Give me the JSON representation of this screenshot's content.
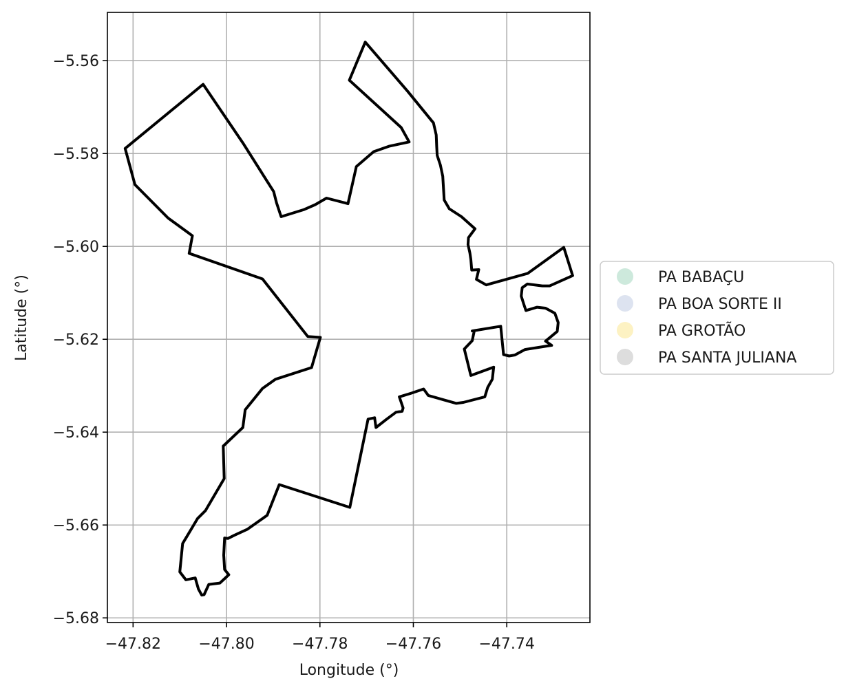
{
  "chart_data": {
    "type": "map",
    "title": "",
    "xlabel": "Longitude (°)",
    "ylabel": "Latitude (°)",
    "xlim": [
      -47.8255,
      -47.7222
    ],
    "ylim": [
      -5.681,
      -5.5496
    ],
    "grid": true,
    "x_ticks": [
      -47.82,
      -47.8,
      -47.78,
      -47.76,
      -47.74
    ],
    "x_tick_labels": [
      "−47.82",
      "−47.80",
      "−47.78",
      "−47.76",
      "−47.74"
    ],
    "y_ticks": [
      -5.56,
      -5.58,
      -5.6,
      -5.62,
      -5.64,
      -5.66,
      -5.68
    ],
    "y_tick_labels": [
      "−5.56",
      "−5.58",
      "−5.60",
      "−5.62",
      "−5.64",
      "−5.66",
      "−5.68"
    ],
    "legend": {
      "placement": "center-right outside axes",
      "entries": [
        {
          "label": "PA BABAÇU",
          "color": "#cde9dc"
        },
        {
          "label": "PA BOA SORTE II",
          "color": "#dde3f0"
        },
        {
          "label": "PA GROTÃO",
          "color": "#fdf2c3"
        },
        {
          "label": "PA SANTA JULIANA",
          "color": "#dddddd"
        }
      ]
    },
    "boundary": {
      "stroke_color": "#000000",
      "coordinates": [
        [
          -47.7703,
          -5.556
        ],
        [
          -47.7737,
          -5.5642
        ],
        [
          -47.7626,
          -5.5744
        ],
        [
          -47.7609,
          -5.5775
        ],
        [
          -47.7651,
          -5.5784
        ],
        [
          -47.7685,
          -5.5796
        ],
        [
          -47.7722,
          -5.5828
        ],
        [
          -47.774,
          -5.5908
        ],
        [
          -47.7786,
          -5.5896
        ],
        [
          -47.781,
          -5.591
        ],
        [
          -47.7835,
          -5.5921
        ],
        [
          -47.7883,
          -5.5936
        ],
        [
          -47.7893,
          -5.5906
        ],
        [
          -47.7899,
          -5.5882
        ],
        [
          -47.7965,
          -5.5777
        ],
        [
          -47.805,
          -5.5651
        ],
        [
          -47.8217,
          -5.5789
        ],
        [
          -47.8196,
          -5.5867
        ],
        [
          -47.8125,
          -5.5939
        ],
        [
          -47.8073,
          -5.5977
        ],
        [
          -47.808,
          -5.6015
        ],
        [
          -47.7923,
          -5.607
        ],
        [
          -47.7826,
          -5.6194
        ],
        [
          -47.7799,
          -5.6196
        ],
        [
          -47.7818,
          -5.6261
        ],
        [
          -47.7895,
          -5.6286
        ],
        [
          -47.7923,
          -5.6306
        ],
        [
          -47.796,
          -5.6352
        ],
        [
          -47.7965,
          -5.639
        ],
        [
          -47.8007,
          -5.643
        ],
        [
          -47.8005,
          -5.65
        ],
        [
          -47.8045,
          -5.6569
        ],
        [
          -47.8062,
          -5.6586
        ],
        [
          -47.8082,
          -5.662
        ],
        [
          -47.8094,
          -5.664
        ],
        [
          -47.81,
          -5.6701
        ],
        [
          -47.8087,
          -5.6718
        ],
        [
          -47.8067,
          -5.6714
        ],
        [
          -47.806,
          -5.6738
        ],
        [
          -47.8053,
          -5.6751
        ],
        [
          -47.8048,
          -5.675
        ],
        [
          -47.8038,
          -5.6728
        ],
        [
          -47.8014,
          -5.6725
        ],
        [
          -47.7995,
          -5.6707
        ],
        [
          -47.8004,
          -5.6696
        ],
        [
          -47.8006,
          -5.6665
        ],
        [
          -47.8004,
          -5.6628
        ],
        [
          -47.7997,
          -5.6629
        ],
        [
          -47.7983,
          -5.6622
        ],
        [
          -47.7955,
          -5.6609
        ],
        [
          -47.7913,
          -5.6579
        ],
        [
          -47.7887,
          -5.6513
        ],
        [
          -47.7736,
          -5.6562
        ],
        [
          -47.7697,
          -5.6372
        ],
        [
          -47.7683,
          -5.6369
        ],
        [
          -47.768,
          -5.639
        ],
        [
          -47.7657,
          -5.6372
        ],
        [
          -47.7637,
          -5.6357
        ],
        [
          -47.7624,
          -5.6355
        ],
        [
          -47.7622,
          -5.6348
        ],
        [
          -47.763,
          -5.6324
        ],
        [
          -47.7604,
          -5.6316
        ],
        [
          -47.7578,
          -5.6307
        ],
        [
          -47.7568,
          -5.6321
        ],
        [
          -47.7533,
          -5.6331
        ],
        [
          -47.7508,
          -5.6338
        ],
        [
          -47.7493,
          -5.6336
        ],
        [
          -47.7447,
          -5.6324
        ],
        [
          -47.7441,
          -5.6304
        ],
        [
          -47.7431,
          -5.6286
        ],
        [
          -47.7428,
          -5.626
        ],
        [
          -47.7477,
          -5.6278
        ],
        [
          -47.7491,
          -5.6221
        ],
        [
          -47.7474,
          -5.6203
        ],
        [
          -47.747,
          -5.6184
        ],
        [
          -47.7474,
          -5.6182
        ],
        [
          -47.7413,
          -5.6172
        ],
        [
          -47.7407,
          -5.6233
        ],
        [
          -47.7395,
          -5.6236
        ],
        [
          -47.7383,
          -5.6234
        ],
        [
          -47.7361,
          -5.6222
        ],
        [
          -47.7304,
          -5.6213
        ],
        [
          -47.7317,
          -5.6204
        ],
        [
          -47.7292,
          -5.6183
        ],
        [
          -47.729,
          -5.6164
        ],
        [
          -47.7297,
          -5.6144
        ],
        [
          -47.7317,
          -5.6133
        ],
        [
          -47.7335,
          -5.6131
        ],
        [
          -47.7359,
          -5.6138
        ],
        [
          -47.7364,
          -5.6123
        ],
        [
          -47.7369,
          -5.6107
        ],
        [
          -47.7367,
          -5.6089
        ],
        [
          -47.7356,
          -5.6081
        ],
        [
          -47.7324,
          -5.6085
        ],
        [
          -47.7308,
          -5.6085
        ],
        [
          -47.7259,
          -5.6063
        ],
        [
          -47.7278,
          -5.6002
        ],
        [
          -47.7355,
          -5.6058
        ],
        [
          -47.7444,
          -5.6083
        ],
        [
          -47.7465,
          -5.6071
        ],
        [
          -47.746,
          -5.605
        ],
        [
          -47.7475,
          -5.6051
        ],
        [
          -47.7477,
          -5.6028
        ],
        [
          -47.7479,
          -5.6014
        ],
        [
          -47.7483,
          -5.5996
        ],
        [
          -47.7482,
          -5.5981
        ],
        [
          -47.7468,
          -5.5962
        ],
        [
          -47.7497,
          -5.5936
        ],
        [
          -47.7523,
          -5.5919
        ],
        [
          -47.7534,
          -5.59
        ],
        [
          -47.7537,
          -5.5849
        ],
        [
          -47.7542,
          -5.5825
        ],
        [
          -47.7549,
          -5.5804
        ],
        [
          -47.755,
          -5.5785
        ],
        [
          -47.7551,
          -5.576
        ],
        [
          -47.7557,
          -5.5734
        ],
        [
          -47.7612,
          -5.5666
        ],
        [
          -47.7703,
          -5.556
        ]
      ]
    }
  }
}
